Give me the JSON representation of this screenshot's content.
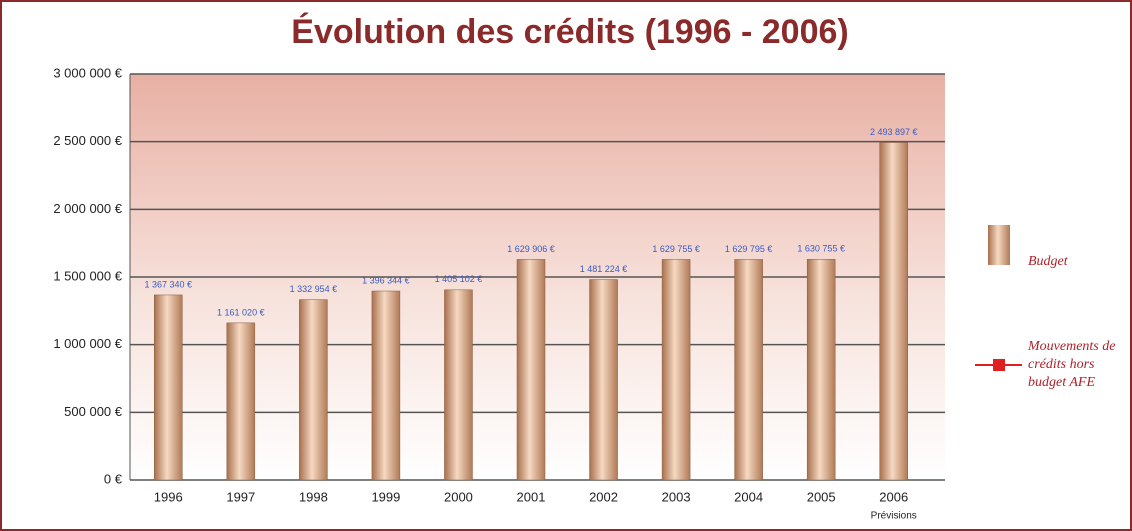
{
  "chart_data": {
    "type": "bar",
    "title": "Évolution des crédits (1996 - 2006)",
    "categories": [
      "1996",
      "1997",
      "1998",
      "1999",
      "2000",
      "2001",
      "2002",
      "2003",
      "2004",
      "2005",
      "2006"
    ],
    "x_annotation": "Prévisions",
    "series": [
      {
        "name": "Budget",
        "color": "#d9a27e",
        "values": [
          1367340,
          1161020,
          1332954,
          1396344,
          1405102,
          1629906,
          1481224,
          1629755,
          1629795,
          1630755,
          2493897
        ],
        "value_labels": [
          "1 367 340 €",
          "1 161 020 €",
          "1 332 954 €",
          "1 396 344 €",
          "1 405 102 €",
          "1 629 906 €",
          "1 481 224 €",
          "1 629 755 €",
          "1 629 795 €",
          "1 630 755 €",
          "2 493 897 €"
        ]
      },
      {
        "name": "Mouvements de crédits hors budget AFE",
        "color": "#e02020",
        "values": [
          null,
          null,
          null,
          null,
          null,
          null,
          null,
          null,
          null,
          null,
          null
        ]
      }
    ],
    "ylim": [
      0,
      3000000
    ],
    "yticks": [
      {
        "value": 0,
        "label": "0 €"
      },
      {
        "value": 500000,
        "label": "500 000 €"
      },
      {
        "value": 1000000,
        "label": "1 000 000 €"
      },
      {
        "value": 1500000,
        "label": "1 500 000 €"
      },
      {
        "value": 2000000,
        "label": "2 000 000 €"
      },
      {
        "value": 2500000,
        "label": "2 500 000 €"
      },
      {
        "value": 3000000,
        "label": "3 000 000 €"
      }
    ],
    "grid": true
  }
}
